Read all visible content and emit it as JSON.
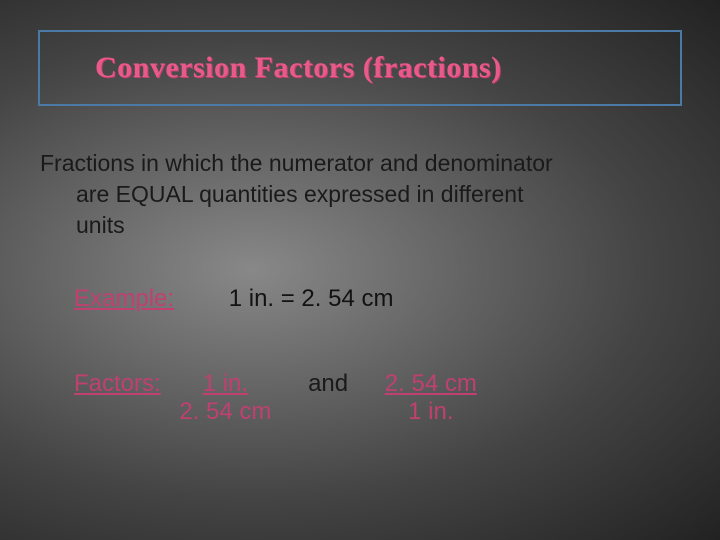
{
  "slide": {
    "background_gradient": [
      "#888888",
      "#666666",
      "#444444",
      "#222222"
    ],
    "title": {
      "text": "Conversion Factors (fractions)",
      "font_family": "Comic Sans MS",
      "font_size_pt": 30,
      "color": "#e85a8a",
      "shadow_color": "#c04070",
      "border_color": "#4a7aa8"
    },
    "definition": {
      "line1": "Fractions in which the numerator and denominator",
      "line2": "are EQUAL quantities expressed in different",
      "line3": "units",
      "font_size_pt": 23,
      "color": "#1a1a1a"
    },
    "example": {
      "label": "Example:",
      "label_color": "#c04070",
      "value": "1 in. = 2. 54 cm",
      "value_color": "#121212",
      "font_size_pt": 24
    },
    "factors": {
      "label": "Factors:",
      "label_color": "#c04070",
      "and": "and",
      "and_color": "#1a1a1a",
      "font_size_pt": 24,
      "fraction1": {
        "numerator": " 1 in.  ",
        "denominator": "2. 54 cm",
        "numerator_underlined": true,
        "color": "#c04070"
      },
      "fraction2": {
        "numerator": " 2. 54 cm ",
        "denominator": "1 in.",
        "numerator_underlined": true,
        "color": "#c04070"
      }
    }
  }
}
